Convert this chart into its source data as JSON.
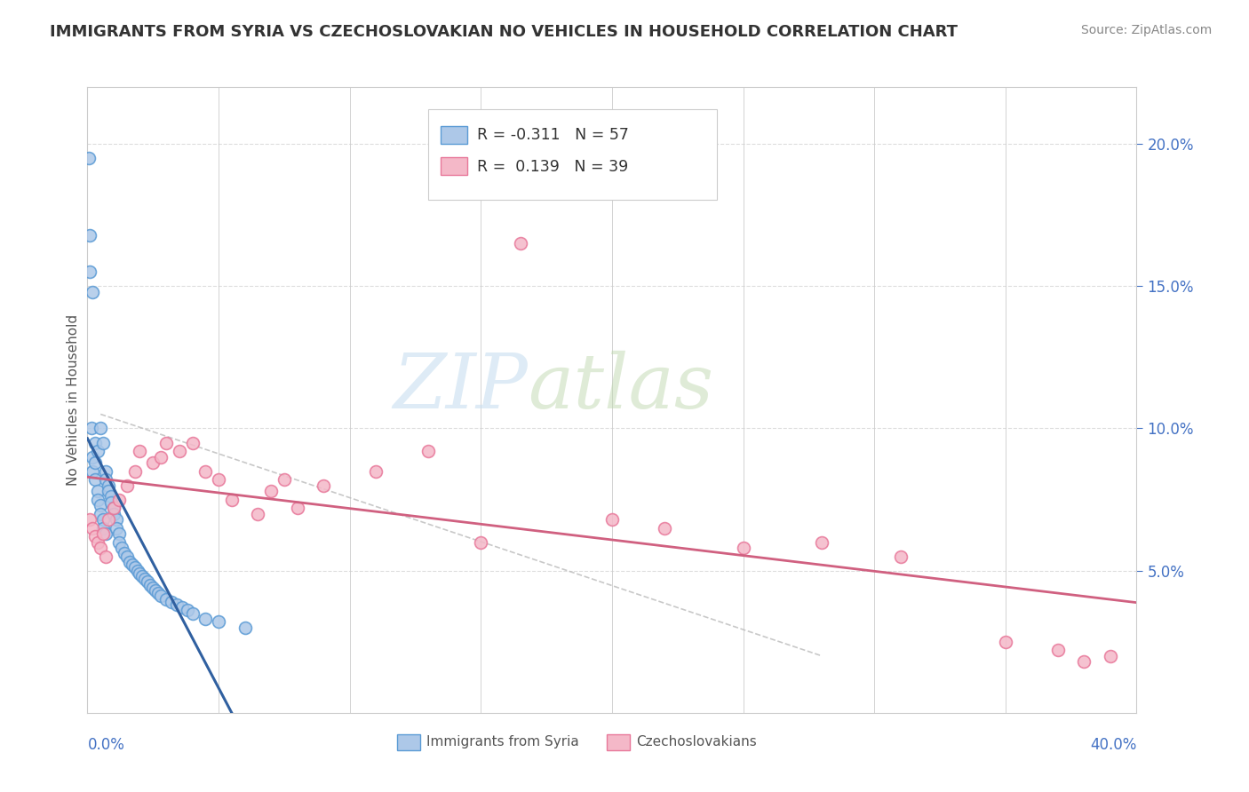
{
  "title": "IMMIGRANTS FROM SYRIA VS CZECHOSLOVAKIAN NO VEHICLES IN HOUSEHOLD CORRELATION CHART",
  "source": "Source: ZipAtlas.com",
  "ylabel": "No Vehicles in Household",
  "legend_series": [
    {
      "label": "Immigrants from Syria",
      "R": -0.311,
      "N": 57,
      "color": "#adc8e8",
      "edge": "#5b9bd5"
    },
    {
      "label": "Czechoslovakians",
      "R": 0.139,
      "N": 39,
      "color": "#f4b8c8",
      "edge": "#e8789a"
    }
  ],
  "trend1_color": "#3060a0",
  "trend2_color": "#d06080",
  "dashed_color": "#bbbbbb",
  "background": "#ffffff",
  "watermark_zip": "ZIP",
  "watermark_atlas": "atlas",
  "xlim": [
    0.0,
    0.4
  ],
  "ylim": [
    0.0,
    0.22
  ],
  "y_ticks_right": [
    0.05,
    0.1,
    0.15,
    0.2
  ],
  "syria_x": [
    0.0005,
    0.001,
    0.001,
    0.0015,
    0.002,
    0.002,
    0.002,
    0.003,
    0.003,
    0.003,
    0.004,
    0.004,
    0.004,
    0.005,
    0.005,
    0.005,
    0.006,
    0.006,
    0.006,
    0.007,
    0.007,
    0.007,
    0.008,
    0.008,
    0.009,
    0.009,
    0.01,
    0.01,
    0.011,
    0.011,
    0.012,
    0.012,
    0.013,
    0.014,
    0.015,
    0.016,
    0.017,
    0.018,
    0.019,
    0.02,
    0.021,
    0.022,
    0.023,
    0.024,
    0.025,
    0.026,
    0.027,
    0.028,
    0.03,
    0.032,
    0.034,
    0.036,
    0.038,
    0.04,
    0.045,
    0.05,
    0.06
  ],
  "syria_y": [
    0.195,
    0.168,
    0.155,
    0.1,
    0.148,
    0.09,
    0.085,
    0.095,
    0.088,
    0.082,
    0.092,
    0.078,
    0.075,
    0.1,
    0.073,
    0.07,
    0.095,
    0.068,
    0.065,
    0.085,
    0.082,
    0.063,
    0.08,
    0.078,
    0.076,
    0.074,
    0.072,
    0.07,
    0.068,
    0.065,
    0.063,
    0.06,
    0.058,
    0.056,
    0.055,
    0.053,
    0.052,
    0.051,
    0.05,
    0.049,
    0.048,
    0.047,
    0.046,
    0.045,
    0.044,
    0.043,
    0.042,
    0.041,
    0.04,
    0.039,
    0.038,
    0.037,
    0.036,
    0.035,
    0.033,
    0.032,
    0.03
  ],
  "czech_x": [
    0.001,
    0.002,
    0.003,
    0.004,
    0.005,
    0.006,
    0.007,
    0.008,
    0.01,
    0.012,
    0.015,
    0.018,
    0.02,
    0.025,
    0.028,
    0.03,
    0.035,
    0.04,
    0.045,
    0.05,
    0.055,
    0.065,
    0.07,
    0.075,
    0.08,
    0.09,
    0.11,
    0.13,
    0.15,
    0.165,
    0.2,
    0.22,
    0.25,
    0.28,
    0.31,
    0.35,
    0.37,
    0.38,
    0.39
  ],
  "czech_y": [
    0.068,
    0.065,
    0.062,
    0.06,
    0.058,
    0.063,
    0.055,
    0.068,
    0.072,
    0.075,
    0.08,
    0.085,
    0.092,
    0.088,
    0.09,
    0.095,
    0.092,
    0.095,
    0.085,
    0.082,
    0.075,
    0.07,
    0.078,
    0.082,
    0.072,
    0.08,
    0.085,
    0.092,
    0.06,
    0.165,
    0.068,
    0.065,
    0.058,
    0.06,
    0.055,
    0.025,
    0.022,
    0.018,
    0.02
  ]
}
